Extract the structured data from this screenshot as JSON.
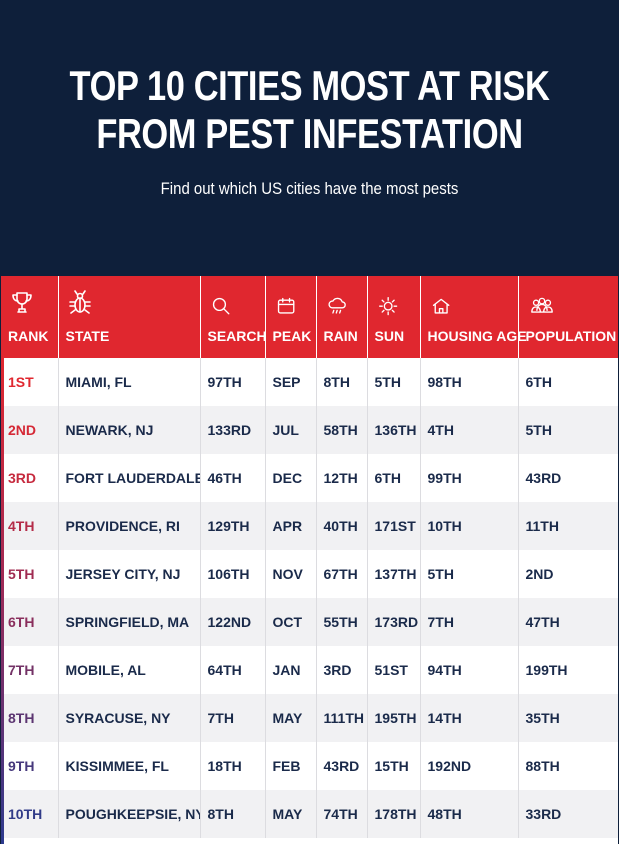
{
  "header": {
    "title_line1": "TOP 10 CITIES MOST AT RISK",
    "title_line2": "FROM PEST INFESTATION",
    "subtitle": "Find out which US cities have the most pests"
  },
  "colors": {
    "background": "#0e1f3a",
    "header_red": "#e0272f",
    "row_alt": "#f1f1f3",
    "text": "#1a2a4a"
  },
  "columns": [
    {
      "label": "RANK",
      "icon": "trophy-icon"
    },
    {
      "label": "STATE",
      "icon": "bug-icon"
    },
    {
      "label": "SEARCH",
      "icon": "search-icon"
    },
    {
      "label": "PEAK",
      "icon": "calendar-icon"
    },
    {
      "label": "RAIN",
      "icon": "rain-cloud-icon"
    },
    {
      "label": "SUN",
      "icon": "sun-icon"
    },
    {
      "label": "HOUSING AGE",
      "icon": "house-icon"
    },
    {
      "label": "POPULATION",
      "icon": "people-icon"
    }
  ],
  "rows": [
    {
      "rank": "1ST",
      "rank_color": "#e0272f",
      "state": "MIAMI, FL",
      "search": "97TH",
      "peak": "SEP",
      "rain": "8TH",
      "sun": "5TH",
      "housing_age": "98TH",
      "population": "6TH"
    },
    {
      "rank": "2ND",
      "rank_color": "#d52936",
      "state": "NEWARK, NJ",
      "search": "133RD",
      "peak": "JUL",
      "rain": "58TH",
      "sun": "136TH",
      "housing_age": "4TH",
      "population": "5TH"
    },
    {
      "rank": "3RD",
      "rank_color": "#c62a3e",
      "state": "FORT LAUDERDALE, FL",
      "search": "46TH",
      "peak": "DEC",
      "rain": "12TH",
      "sun": "6TH",
      "housing_age": "99TH",
      "population": "43RD"
    },
    {
      "rank": "4TH",
      "rank_color": "#b42b48",
      "state": "PROVIDENCE, RI",
      "search": "129TH",
      "peak": "APR",
      "rain": "40TH",
      "sun": "171ST",
      "housing_age": "10TH",
      "population": "11TH"
    },
    {
      "rank": "5TH",
      "rank_color": "#a02c52",
      "state": "JERSEY CITY, NJ",
      "search": "106TH",
      "peak": "NOV",
      "rain": "67TH",
      "sun": "137TH",
      "housing_age": "5TH",
      "population": "2ND"
    },
    {
      "rank": "6TH",
      "rank_color": "#8a2e5c",
      "state": "SPRINGFIELD, MA",
      "search": "122ND",
      "peak": "OCT",
      "rain": "55TH",
      "sun": "173RD",
      "housing_age": "7TH",
      "population": "47TH"
    },
    {
      "rank": "7TH",
      "rank_color": "#733266",
      "state": "MOBILE, AL",
      "search": "64TH",
      "peak": "JAN",
      "rain": "3RD",
      "sun": "51ST",
      "housing_age": "94TH",
      "population": "199TH"
    },
    {
      "rank": "8TH",
      "rank_color": "#5c3571",
      "state": "SYRACUSE, NY",
      "search": "7TH",
      "peak": "MAY",
      "rain": "111TH",
      "sun": "195TH",
      "housing_age": "14TH",
      "population": "35TH"
    },
    {
      "rank": "9TH",
      "rank_color": "#46387c",
      "state": "KISSIMMEE, FL",
      "search": "18TH",
      "peak": "FEB",
      "rain": "43RD",
      "sun": "15TH",
      "housing_age": "192ND",
      "population": "88TH"
    },
    {
      "rank": "10TH",
      "rank_color": "#313b88",
      "state": "POUGHKEEPSIE, NY",
      "search": "8TH",
      "peak": "MAY",
      "rain": "74TH",
      "sun": "178TH",
      "housing_age": "48TH",
      "population": "33RD"
    }
  ]
}
